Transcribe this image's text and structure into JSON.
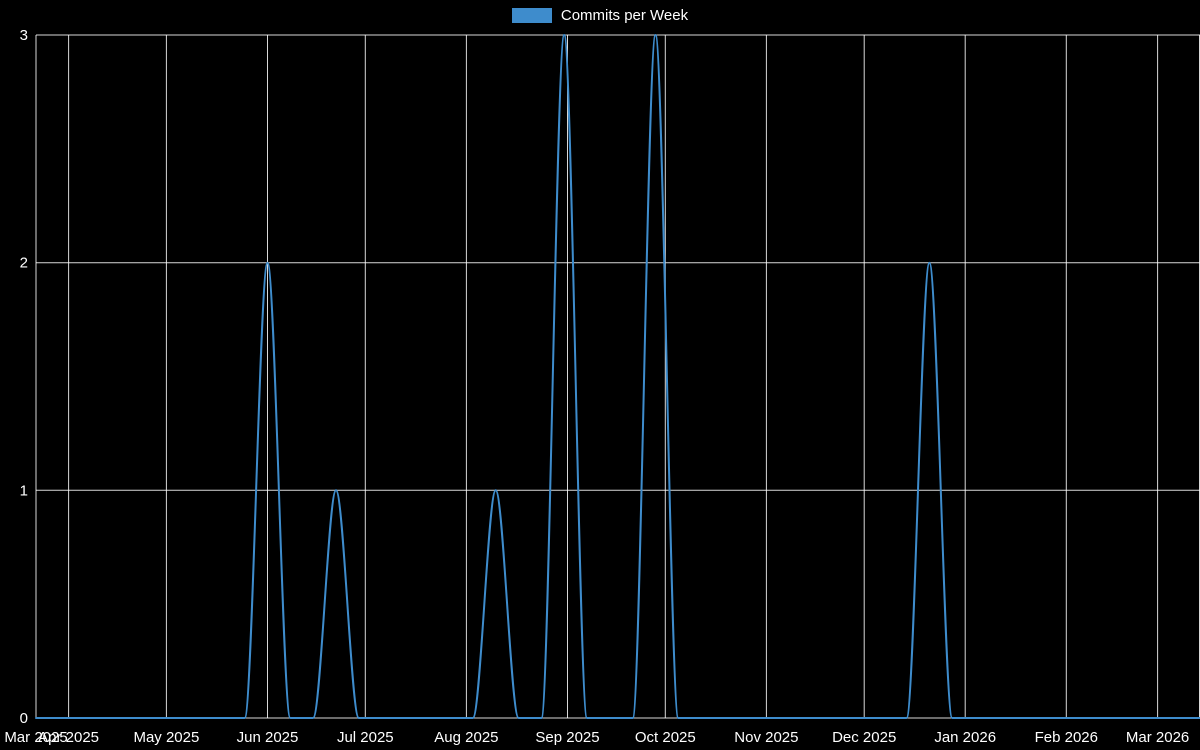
{
  "legend": {
    "label": "Commits per Week"
  },
  "colors": {
    "background": "#000000",
    "grid": "#ffffff",
    "text": "#ffffff",
    "series": "#3e8ccc"
  },
  "chart_data": {
    "type": "line",
    "title": "Commits per Week",
    "legend_position": "top-center",
    "grid": true,
    "series_name": "Commits per Week",
    "x_domain": [
      "2025-03-22",
      "2026-03-14"
    ],
    "y_axis": {
      "min": 0,
      "max": 3,
      "ticks": [
        0,
        1,
        2,
        3
      ]
    },
    "x_ticks": [
      {
        "label": "Mar 2025",
        "date": "2025-03-22"
      },
      {
        "label": "Apr 2025",
        "date": "2025-04-01"
      },
      {
        "label": "May 2025",
        "date": "2025-05-01"
      },
      {
        "label": "Jun 2025",
        "date": "2025-06-01"
      },
      {
        "label": "Jul 2025",
        "date": "2025-07-01"
      },
      {
        "label": "Aug 2025",
        "date": "2025-08-01"
      },
      {
        "label": "Sep 2025",
        "date": "2025-09-01"
      },
      {
        "label": "Oct 2025",
        "date": "2025-10-01"
      },
      {
        "label": "Nov 2025",
        "date": "2025-11-01"
      },
      {
        "label": "Dec 2025",
        "date": "2025-12-01"
      },
      {
        "label": "Jan 2026",
        "date": "2026-01-01"
      },
      {
        "label": "Feb 2026",
        "date": "2026-02-01"
      },
      {
        "label": "Mar 2026",
        "date": "2026-03-01"
      }
    ],
    "points": [
      [
        "2025-03-22",
        0
      ],
      [
        "2025-03-23",
        0
      ],
      [
        "2025-03-30",
        0
      ],
      [
        "2025-04-06",
        0
      ],
      [
        "2025-04-13",
        0
      ],
      [
        "2025-04-20",
        0
      ],
      [
        "2025-04-27",
        0
      ],
      [
        "2025-05-04",
        0
      ],
      [
        "2025-05-11",
        0
      ],
      [
        "2025-05-18",
        0
      ],
      [
        "2025-05-25",
        0
      ],
      [
        "2025-06-01",
        2
      ],
      [
        "2025-06-08",
        0
      ],
      [
        "2025-06-15",
        0
      ],
      [
        "2025-06-22",
        1
      ],
      [
        "2025-06-29",
        0
      ],
      [
        "2025-07-06",
        0
      ],
      [
        "2025-07-13",
        0
      ],
      [
        "2025-07-20",
        0
      ],
      [
        "2025-07-27",
        0
      ],
      [
        "2025-08-03",
        0
      ],
      [
        "2025-08-10",
        1
      ],
      [
        "2025-08-17",
        0
      ],
      [
        "2025-08-24",
        0
      ],
      [
        "2025-08-31",
        3
      ],
      [
        "2025-09-07",
        0
      ],
      [
        "2025-09-14",
        0
      ],
      [
        "2025-09-21",
        0
      ],
      [
        "2025-09-28",
        3
      ],
      [
        "2025-10-05",
        0
      ],
      [
        "2025-10-12",
        0
      ],
      [
        "2025-10-19",
        0
      ],
      [
        "2025-10-26",
        0
      ],
      [
        "2025-11-02",
        0
      ],
      [
        "2025-11-09",
        0
      ],
      [
        "2025-11-16",
        0
      ],
      [
        "2025-11-23",
        0
      ],
      [
        "2025-11-30",
        0
      ],
      [
        "2025-12-07",
        0
      ],
      [
        "2025-12-14",
        0
      ],
      [
        "2025-12-21",
        2
      ],
      [
        "2025-12-28",
        0
      ],
      [
        "2026-01-04",
        0
      ],
      [
        "2026-01-11",
        0
      ],
      [
        "2026-01-18",
        0
      ],
      [
        "2026-01-25",
        0
      ],
      [
        "2026-02-01",
        0
      ],
      [
        "2026-02-08",
        0
      ],
      [
        "2026-02-15",
        0
      ],
      [
        "2026-02-22",
        0
      ],
      [
        "2026-03-01",
        0
      ],
      [
        "2026-03-08",
        0
      ],
      [
        "2026-03-15",
        0
      ]
    ]
  }
}
